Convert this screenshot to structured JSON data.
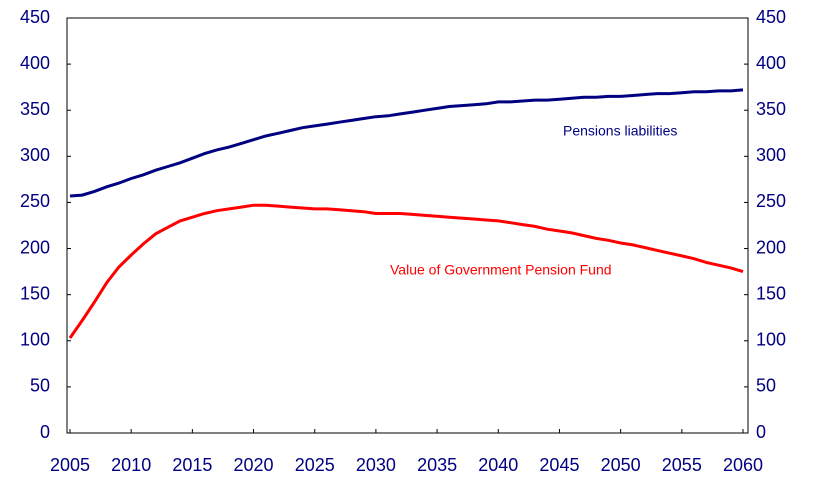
{
  "chart_data": {
    "type": "line",
    "x": [
      2005,
      2006,
      2007,
      2008,
      2009,
      2010,
      2011,
      2012,
      2013,
      2014,
      2015,
      2016,
      2017,
      2018,
      2019,
      2020,
      2021,
      2022,
      2023,
      2024,
      2025,
      2026,
      2027,
      2028,
      2029,
      2030,
      2031,
      2032,
      2033,
      2034,
      2035,
      2036,
      2037,
      2038,
      2039,
      2040,
      2041,
      2042,
      2043,
      2044,
      2045,
      2046,
      2047,
      2048,
      2049,
      2050,
      2051,
      2052,
      2053,
      2054,
      2055,
      2056,
      2057,
      2058,
      2059,
      2060
    ],
    "series": [
      {
        "name": "Pensions liabilities",
        "color": "#000080",
        "values": [
          257,
          258,
          262,
          267,
          271,
          276,
          280,
          285,
          289,
          293,
          298,
          303,
          307,
          310,
          314,
          318,
          322,
          325,
          328,
          331,
          333,
          335,
          337,
          339,
          341,
          343,
          344,
          346,
          348,
          350,
          352,
          354,
          355,
          356,
          357,
          359,
          359,
          360,
          361,
          361,
          362,
          363,
          364,
          364,
          365,
          365,
          366,
          367,
          368,
          368,
          369,
          370,
          370,
          371,
          371,
          372
        ]
      },
      {
        "name": "Value of Government Pension Fund",
        "color": "#ff0000",
        "values": [
          103,
          122,
          142,
          163,
          180,
          193,
          205,
          216,
          223,
          230,
          234,
          238,
          241,
          243,
          245,
          247,
          247,
          246,
          245,
          244,
          243,
          243,
          242,
          241,
          240,
          238,
          238,
          238,
          237,
          236,
          235,
          234,
          233,
          232,
          231,
          230,
          228,
          226,
          224,
          221,
          219,
          217,
          214,
          211,
          209,
          206,
          204,
          201,
          198,
          195,
          192,
          189,
          185,
          182,
          179,
          175
        ]
      }
    ],
    "xlim": [
      2005,
      2060
    ],
    "xticks": [
      2005,
      2010,
      2015,
      2020,
      2025,
      2030,
      2035,
      2040,
      2045,
      2050,
      2055,
      2060
    ],
    "ylim": [
      0,
      450
    ],
    "yticks": [
      0,
      50,
      100,
      150,
      200,
      250,
      300,
      350,
      400,
      450
    ],
    "y2lim": [
      0,
      450
    ],
    "y2ticks": [
      0,
      50,
      100,
      150,
      200,
      250,
      300,
      350,
      400,
      450
    ]
  }
}
